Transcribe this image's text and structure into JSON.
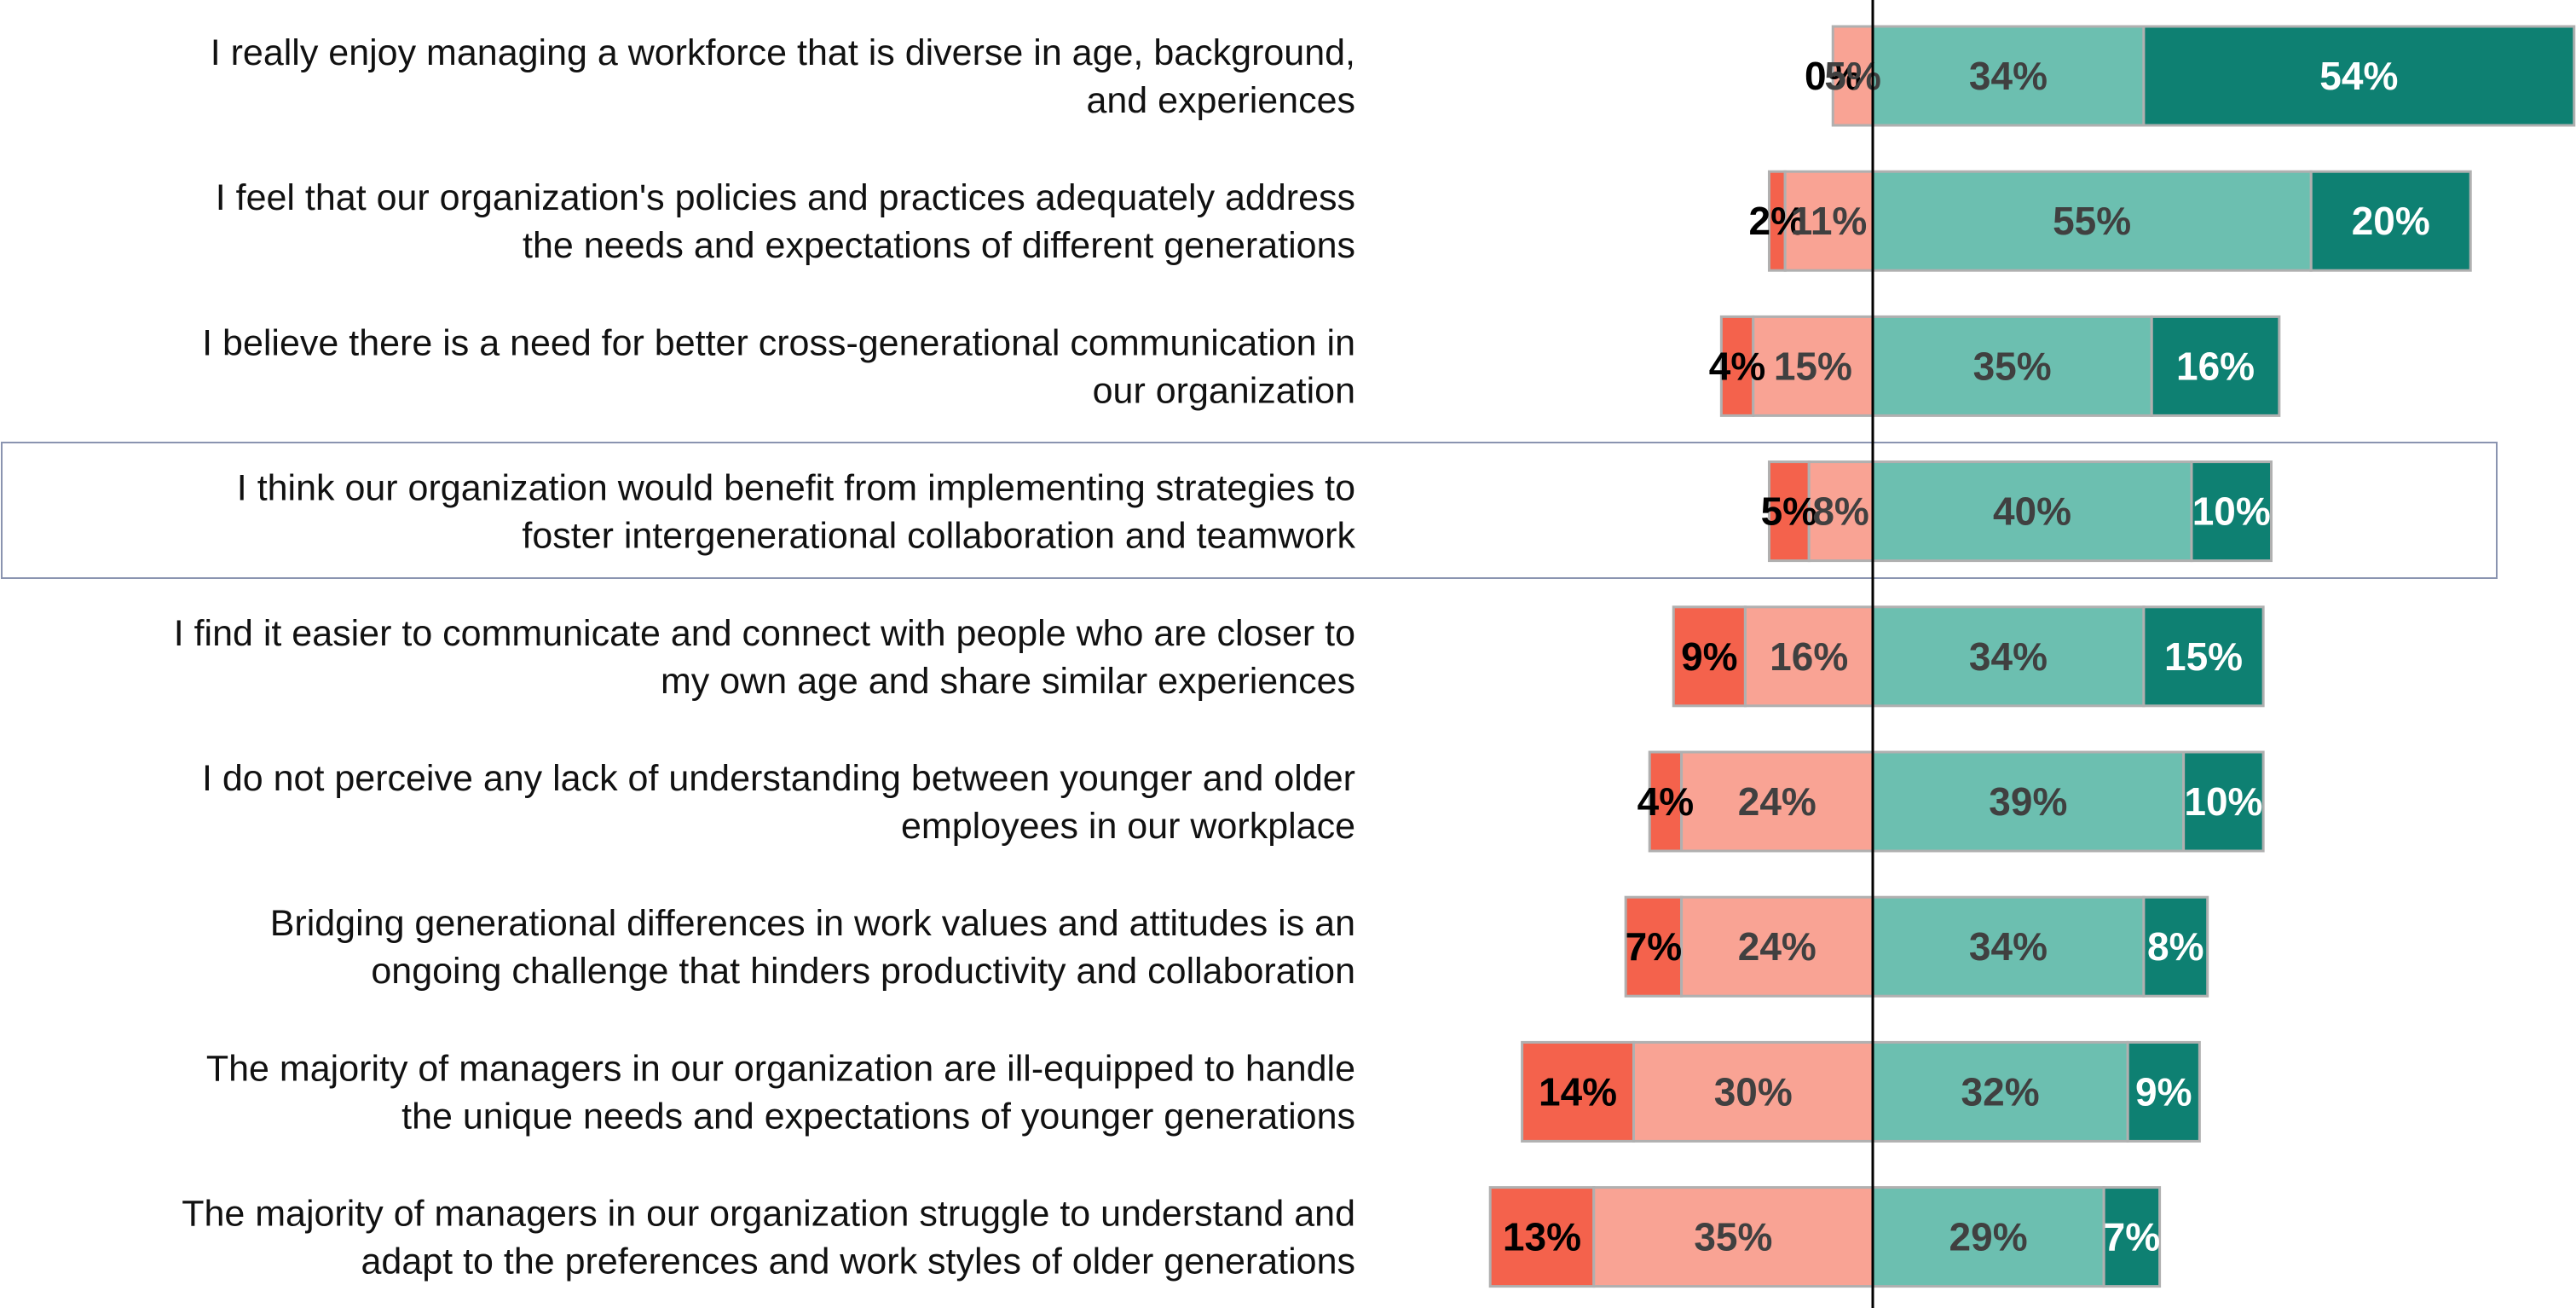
{
  "chart_data": {
    "type": "diverging_bar",
    "categories": [
      [
        "I really enjoy managing a workforce that is diverse in age, background,",
        "and experiences"
      ],
      [
        "I feel that our organization's policies and practices adequately address",
        "the needs and expectations of different generations"
      ],
      [
        "I believe there is a need for better cross-generational communication in",
        "our organization"
      ],
      [
        "I think our organization would benefit from implementing strategies to",
        "foster intergenerational collaboration and teamwork"
      ],
      [
        "I find it easier to communicate and connect with people who are closer to",
        "my own age and share similar experiences"
      ],
      [
        "I do not perceive any lack of understanding between younger and older",
        "employees in our workplace"
      ],
      [
        "Bridging generational differences in work values and attitudes is an",
        "ongoing challenge that hinders productivity and collaboration"
      ],
      [
        "The majority of managers in our organization are ill-equipped to handle",
        "the unique needs and expectations of younger generations"
      ],
      [
        "The majority of managers in our organization struggle to understand and",
        "adapt to the preferences and work styles of older generations"
      ]
    ],
    "series": [
      {
        "color": "#f4624c",
        "side": "negative",
        "values": [
          0,
          2,
          4,
          5,
          9,
          4,
          7,
          14,
          13
        ],
        "value_labels": [
          "0%",
          "2%",
          "4%",
          "5%",
          "9%",
          "4%",
          "7%",
          "14%",
          "13%"
        ]
      },
      {
        "color": "#f9a394",
        "side": "negative",
        "values": [
          5,
          11,
          15,
          8,
          16,
          24,
          24,
          30,
          35
        ],
        "value_labels": [
          "5%",
          "11%",
          "15%",
          "8%",
          "16%",
          "24%",
          "24%",
          "30%",
          "35%"
        ]
      },
      {
        "color": "#6cbfb0",
        "side": "positive",
        "values": [
          34,
          55,
          35,
          40,
          34,
          39,
          34,
          32,
          29
        ],
        "value_labels": [
          "34%",
          "55%",
          "35%",
          "40%",
          "34%",
          "39%",
          "34%",
          "32%",
          "29%"
        ]
      },
      {
        "color": "#0e8072",
        "side": "positive",
        "values": [
          54,
          20,
          16,
          10,
          15,
          10,
          8,
          9,
          7
        ],
        "value_labels": [
          "54%",
          "20%",
          "16%",
          "10%",
          "15%",
          "10%",
          "8%",
          "9%",
          "7%"
        ]
      }
    ]
  }
}
